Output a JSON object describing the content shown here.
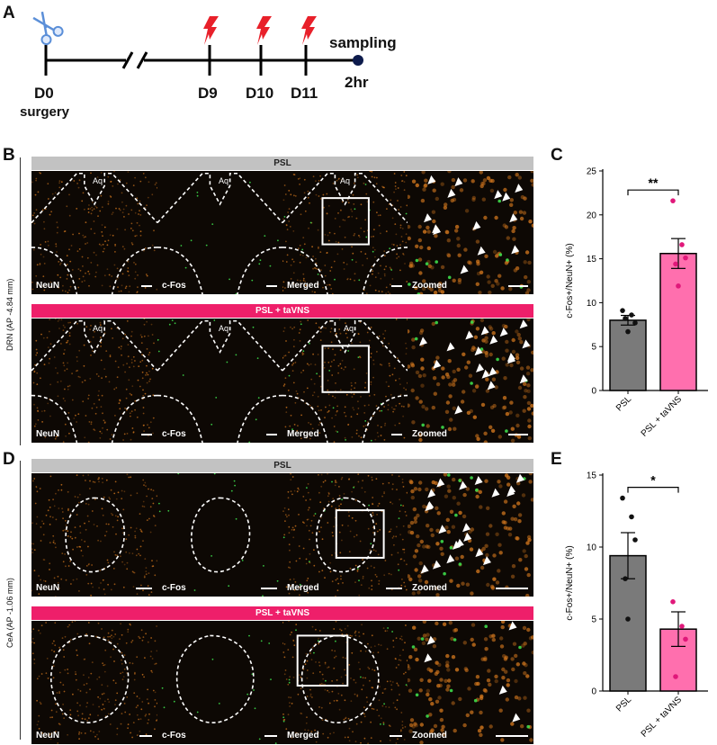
{
  "panels": {
    "A": "A",
    "B": "B",
    "C": "C",
    "D": "D",
    "E": "E"
  },
  "timeline": {
    "labels": {
      "d0": "D0",
      "surgery": "surgery",
      "d9": "D9",
      "d10": "D10",
      "d11": "D11",
      "sampling": "sampling",
      "hr": "2hr"
    },
    "icons": {
      "scissors": "scissors-icon",
      "stimulation": "lightning-bolt-icon"
    },
    "colors": {
      "bolt": "#e8202a",
      "scissors": "#5b8fd8",
      "sampling_dot": "#0d1b4c"
    }
  },
  "panel_b": {
    "side_label": "DRN (AP -4.84 mm)",
    "rows": [
      {
        "banner": "PSL",
        "tiles": [
          "NeuN",
          "c-Fos",
          "Merged",
          "Zoomed"
        ],
        "aq": "Aq"
      },
      {
        "banner": "PSL + taVNS",
        "tiles": [
          "NeuN",
          "c-Fos",
          "Merged",
          "Zoomed"
        ],
        "aq": "Aq"
      }
    ]
  },
  "panel_d": {
    "side_label": "CeA (AP -1.06 mm)",
    "rows": [
      {
        "banner": "PSL",
        "tiles": [
          "NeuN",
          "c-Fos",
          "Merged",
          "Zoomed"
        ]
      },
      {
        "banner": "PSL + taVNS",
        "tiles": [
          "NeuN",
          "c-Fos",
          "Merged",
          "Zoomed"
        ]
      }
    ]
  },
  "colors": {
    "psl_banner": "#c2c2c2",
    "tavns_banner": "#ee1f6a",
    "psl_bar": "#7a7a7a",
    "tavns_bar": "#ff6fae",
    "tavns_point": "#e0187a",
    "tissue": "#0d0804",
    "neun_cell": "#d4781e",
    "cfos_cell": "#3ddc4a"
  },
  "chart_data": [
    {
      "type": "bar",
      "panel": "C",
      "categories": [
        "PSL",
        "PSL + taVNS"
      ],
      "values": [
        8.0,
        15.6
      ],
      "errors": [
        0.55,
        1.7
      ],
      "points": [
        [
          9.1,
          8.6,
          7.7,
          8.2,
          6.7
        ],
        [
          21.6,
          16.6,
          15.1,
          14.4,
          11.9
        ]
      ],
      "ylabel": "c-Fos+/NeuN+ (%)",
      "yticks": [
        0,
        5,
        10,
        15,
        20,
        25
      ],
      "ylim": [
        0,
        25
      ],
      "significance": "**"
    },
    {
      "type": "bar",
      "panel": "E",
      "categories": [
        "PSL",
        "PSL + taVNS"
      ],
      "values": [
        9.4,
        4.3
      ],
      "errors": [
        1.6,
        1.2
      ],
      "points": [
        [
          13.4,
          12.1,
          10.5,
          7.8,
          5.0
        ],
        [
          6.2,
          4.5,
          3.6,
          1.0
        ]
      ],
      "ylabel": "c-Fos+/NeuN+ (%)",
      "yticks": [
        0,
        5,
        10,
        15
      ],
      "ylim": [
        0,
        15
      ],
      "significance": "*"
    }
  ]
}
